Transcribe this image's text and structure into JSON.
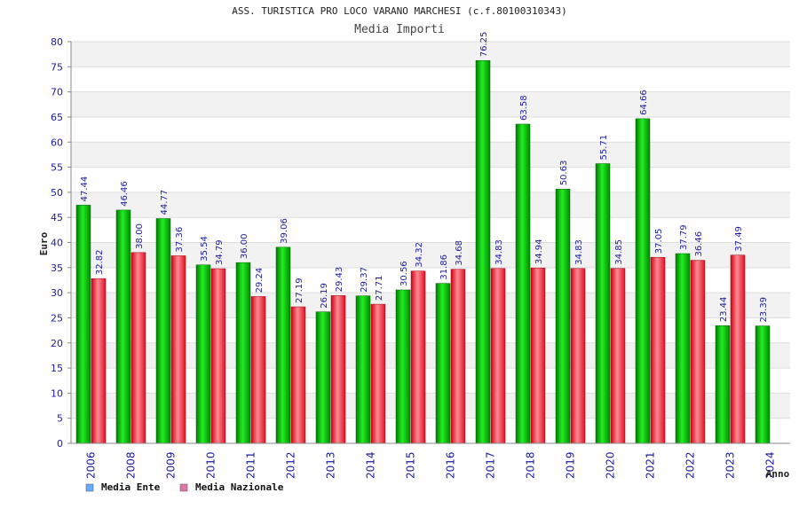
{
  "chart_data": {
    "type": "bar",
    "title": "ASS. TURISTICA PRO LOCO VARANO MARCHESI (c.f.80100310343)",
    "subtitle": "Media Importi",
    "xlabel": "Anno",
    "ylabel": "Euro",
    "ylim": [
      0,
      80
    ],
    "ytick_step": 5,
    "categories": [
      "2006",
      "2008",
      "2009",
      "2010",
      "2011",
      "2012",
      "2013",
      "2014",
      "2015",
      "2016",
      "2017",
      "2018",
      "2019",
      "2020",
      "2021",
      "2022",
      "2023",
      "2024"
    ],
    "series": [
      {
        "name": "Media Ente",
        "color": "#00cc00",
        "values": [
          47.44,
          46.46,
          44.77,
          35.54,
          36.0,
          39.06,
          26.19,
          29.37,
          30.56,
          31.86,
          76.25,
          63.58,
          50.63,
          55.71,
          64.66,
          37.79,
          23.44,
          23.39
        ]
      },
      {
        "name": "Media Nazionale",
        "color": "#ee2233",
        "values": [
          32.82,
          38.0,
          37.36,
          34.79,
          29.24,
          27.19,
          29.43,
          27.71,
          34.32,
          34.68,
          34.83,
          34.94,
          34.83,
          34.85,
          37.05,
          36.46,
          37.49,
          null
        ]
      }
    ],
    "legend": [
      {
        "label": "Media Ente",
        "swatch": "#66aaff"
      },
      {
        "label": "Media Nazionale",
        "swatch": "#dd77aa"
      }
    ],
    "grid": true,
    "legend_position": "bottom-left"
  }
}
